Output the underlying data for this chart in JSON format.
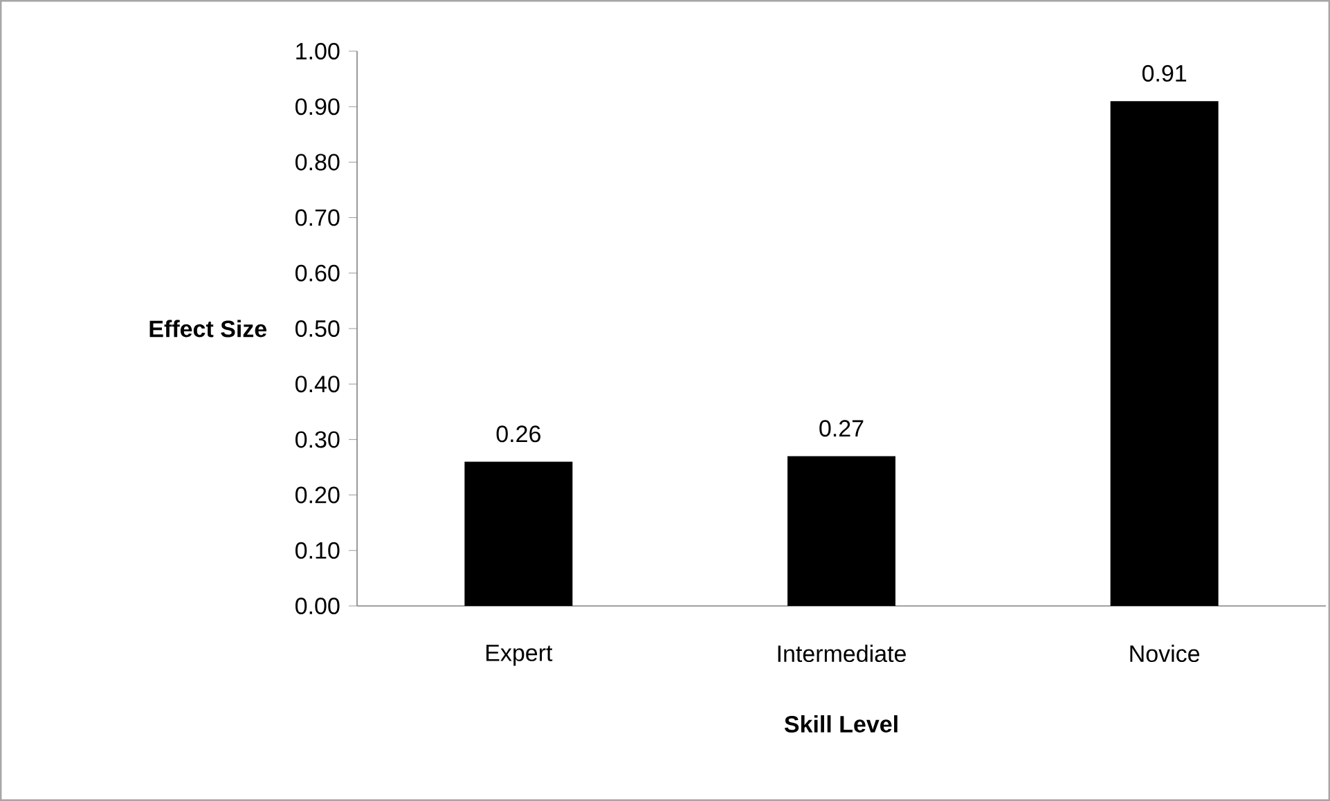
{
  "chart_data": {
    "type": "bar",
    "xlabel": "Skill Level",
    "ylabel": "Effect Size",
    "categories": [
      "Expert",
      "Intermediate",
      "Novice"
    ],
    "values": [
      0.26,
      0.27,
      0.91
    ],
    "color": "#000000",
    "ylim": [
      0,
      1
    ],
    "yticks": [
      {
        "value": 0,
        "label": "0.00"
      },
      {
        "value": 0.1,
        "label": "0.10"
      },
      {
        "value": 0.2,
        "label": "0.20"
      },
      {
        "value": 0.3,
        "label": "0.30"
      },
      {
        "value": 0.4,
        "label": "0.40"
      },
      {
        "value": 0.5,
        "label": "0.50"
      },
      {
        "value": 0.6,
        "label": "0.60"
      },
      {
        "value": 0.7,
        "label": "0.70"
      },
      {
        "value": 0.8,
        "label": "0.80"
      },
      {
        "value": 0.9,
        "label": "0.90"
      },
      {
        "value": 1,
        "label": "1.00"
      }
    ],
    "data_labels": true,
    "grid": false
  }
}
